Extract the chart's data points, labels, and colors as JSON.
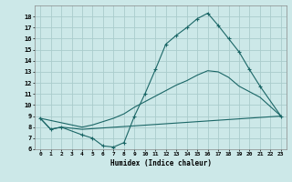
{
  "xlabel": "Humidex (Indice chaleur)",
  "bg_color": "#cce8e8",
  "grid_color": "#aacccc",
  "line_color": "#1a6666",
  "line1_x": [
    0,
    1,
    2,
    4,
    5,
    6,
    7,
    8,
    9,
    10,
    11,
    12,
    13,
    14,
    15,
    16,
    17,
    18,
    19,
    20,
    21,
    23
  ],
  "line1_y": [
    8.8,
    7.8,
    8.0,
    7.3,
    7.0,
    6.3,
    6.2,
    6.6,
    9.0,
    11.0,
    13.2,
    15.5,
    16.3,
    17.0,
    17.8,
    18.3,
    17.2,
    16.0,
    14.8,
    13.2,
    11.7,
    9.0
  ],
  "line2_x": [
    0,
    1,
    2,
    4,
    23
  ],
  "line2_y": [
    8.8,
    7.8,
    8.0,
    7.8,
    9.0
  ],
  "line3_x": [
    0,
    4,
    5,
    6,
    7,
    8,
    9,
    10,
    11,
    12,
    13,
    14,
    15,
    16,
    17,
    18,
    19,
    20,
    21,
    23
  ],
  "line3_y": [
    8.8,
    8.0,
    8.2,
    8.5,
    8.8,
    9.2,
    9.8,
    10.3,
    10.8,
    11.3,
    11.8,
    12.2,
    12.7,
    13.1,
    13.0,
    12.5,
    11.7,
    11.2,
    10.7,
    9.0
  ],
  "xlim": [
    -0.5,
    23.5
  ],
  "ylim": [
    6,
    19
  ],
  "xticks": [
    0,
    1,
    2,
    3,
    4,
    5,
    6,
    7,
    8,
    9,
    10,
    11,
    12,
    13,
    14,
    15,
    16,
    17,
    18,
    19,
    20,
    21,
    22,
    23
  ],
  "yticks": [
    6,
    7,
    8,
    9,
    10,
    11,
    12,
    13,
    14,
    15,
    16,
    17,
    18
  ]
}
